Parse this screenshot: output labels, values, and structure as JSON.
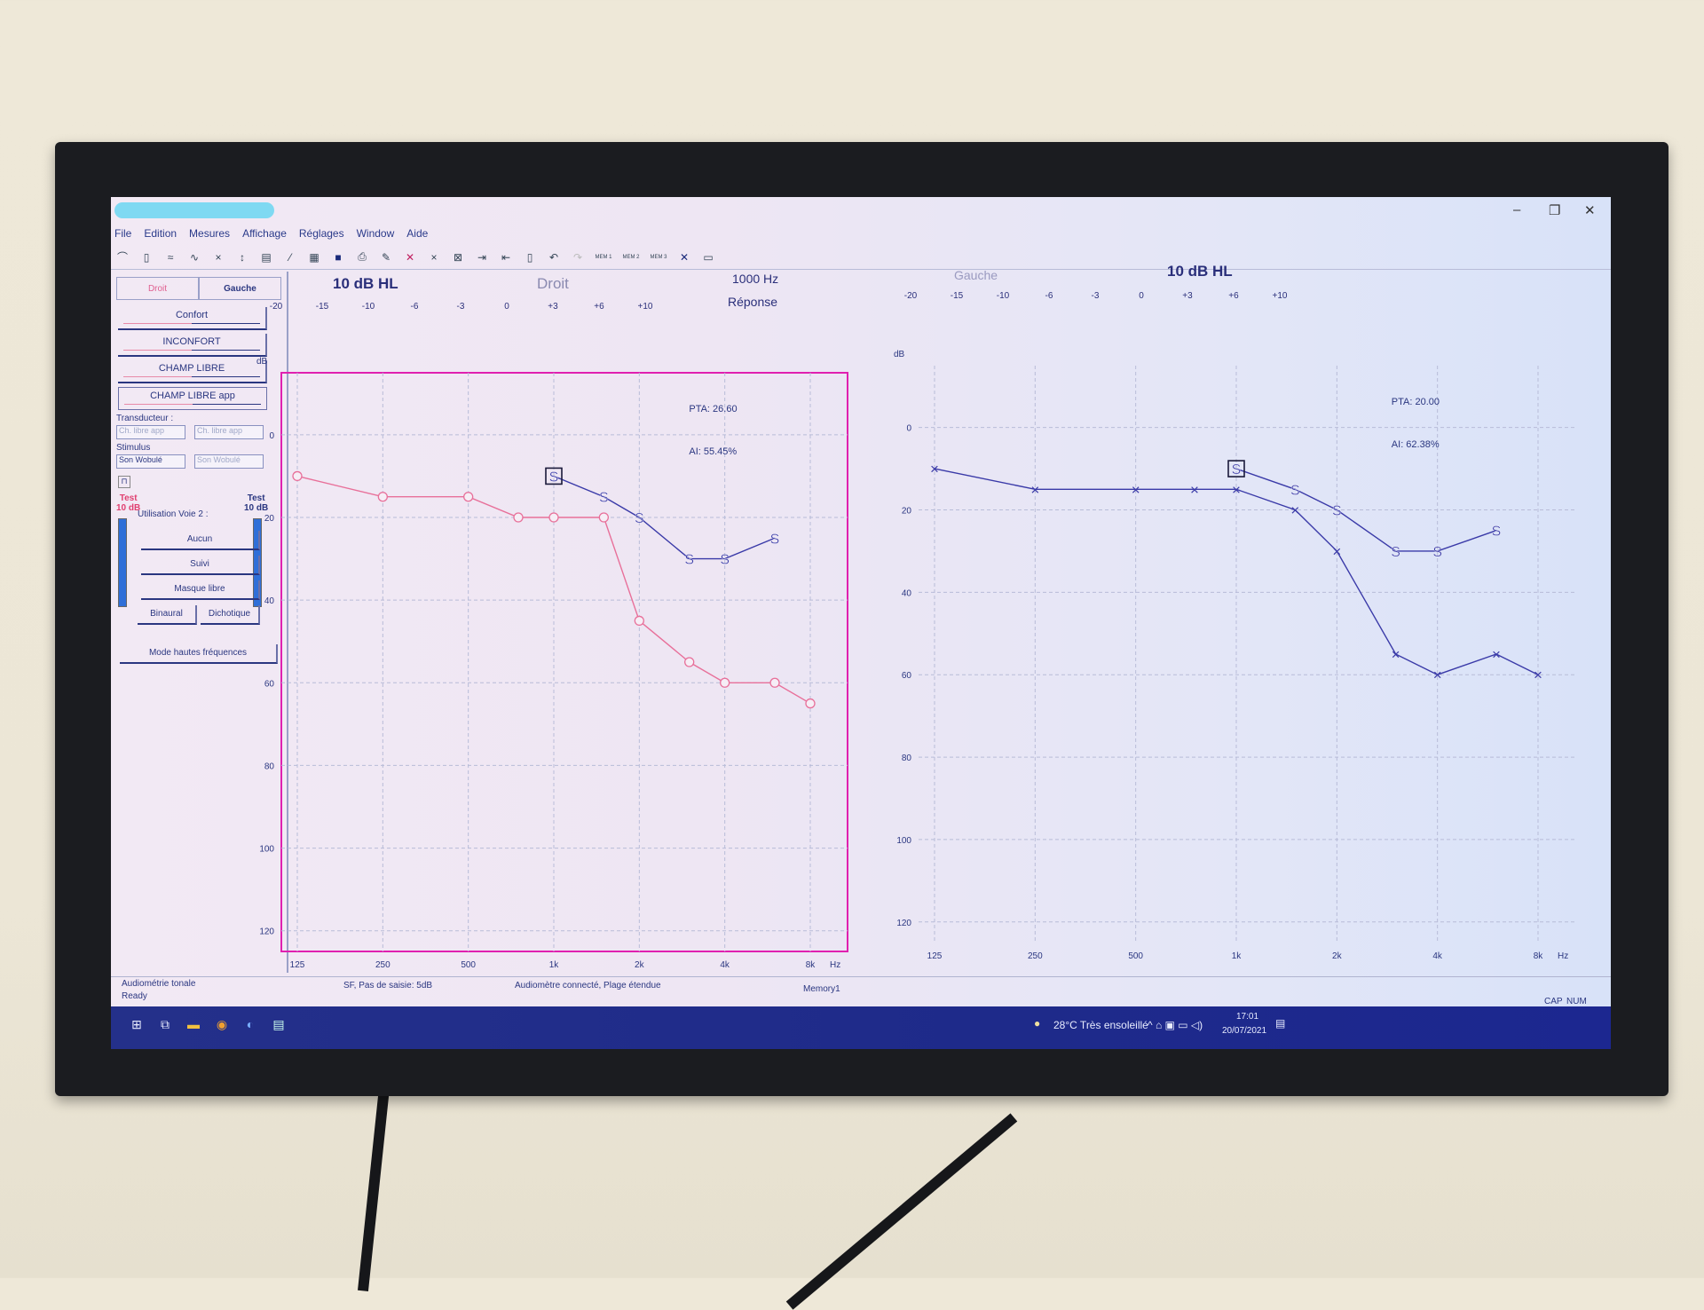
{
  "menu": [
    "File",
    "Edition",
    "Mesures",
    "Affichage",
    "Réglages",
    "Window",
    "Aide"
  ],
  "toolbar": {
    "mem1": "MEM 1",
    "mem2": "MEM 2",
    "mem3": "MEM 3"
  },
  "left_panel": {
    "tabs": [
      "Droit",
      "Gauche"
    ],
    "modes": [
      "Confort",
      "INCONFORT",
      "CHAMP LIBRE",
      "CHAMP LIBRE app"
    ],
    "transducteur_label": "Transducteur :",
    "transducteur": [
      "Ch. libre app",
      "Ch. libre app"
    ],
    "stimulus_label": "Stimulus",
    "stimulus": [
      "Son Wobulé",
      "Son Wobulé"
    ],
    "test_left": "Test",
    "test_left_level": "10 dB",
    "test_right": "Test",
    "test_right_level": "10 dB",
    "voie2_label": "Utilisation Voie 2 :",
    "voie2_buttons": [
      "Aucun",
      "Suivi",
      "Masque libre"
    ],
    "binaural": "Binaural",
    "dichotique": "Dichotique",
    "hf_mode": "Mode hautes fréquences"
  },
  "header": {
    "left_level": "10 dB HL",
    "droit": "Droit",
    "freq": "1000 Hz",
    "reponse": "Réponse",
    "gauche": "Gauche",
    "right_level": "10 dB HL",
    "mask_scale": [
      "-20",
      "-15",
      "-10",
      "-6",
      "-3",
      "0",
      "+3",
      "+6",
      "+10"
    ]
  },
  "colors": {
    "red_series": "#e8709a",
    "blue_series": "#3a3aa8",
    "frame": "#e020b0"
  },
  "chart_data": [
    {
      "type": "line",
      "side": "Droit",
      "ylabel": "dB",
      "y_reversed": true,
      "ylim": [
        -15,
        125
      ],
      "yticks": [
        "0",
        "20",
        "40",
        "60",
        "80",
        "100",
        "120"
      ],
      "xscale": "log",
      "xticks": [
        "125",
        "250",
        "500",
        "1k",
        "2k",
        "4k",
        "8k"
      ],
      "xunit": "Hz",
      "grid": true,
      "pta": "PTA: 26.60",
      "ai": "AI: 55.45%",
      "series": [
        {
          "marker": "circle",
          "color": "#e8709a",
          "x": [
            125,
            250,
            500,
            750,
            1000,
            1500,
            2000,
            3000,
            4000,
            6000,
            8000
          ],
          "y": [
            10,
            15,
            15,
            20,
            20,
            20,
            45,
            55,
            60,
            60,
            65
          ]
        },
        {
          "marker": "S",
          "color": "#3a3aa8",
          "selected_x": 1000,
          "x": [
            1000,
            1500,
            2000,
            3000,
            4000,
            6000
          ],
          "y": [
            10,
            15,
            20,
            30,
            30,
            25
          ]
        }
      ]
    },
    {
      "type": "line",
      "side": "Gauche",
      "ylabel": "dB",
      "y_reversed": true,
      "ylim": [
        -15,
        125
      ],
      "yticks": [
        "0",
        "20",
        "40",
        "60",
        "80",
        "100",
        "120"
      ],
      "xscale": "log",
      "xticks": [
        "125",
        "250",
        "500",
        "1k",
        "2k",
        "4k",
        "8k"
      ],
      "xunit": "Hz",
      "grid": true,
      "pta": "PTA: 20.00",
      "ai": "AI: 62.38%",
      "series": [
        {
          "marker": "X",
          "color": "#3a3aa8",
          "x": [
            125,
            250,
            500,
            750,
            1000,
            1500,
            2000,
            3000,
            4000,
            6000,
            8000
          ],
          "y": [
            10,
            15,
            15,
            15,
            15,
            20,
            30,
            55,
            60,
            55,
            60
          ]
        },
        {
          "marker": "S",
          "color": "#3a3aa8",
          "selected_x": 1000,
          "x": [
            1000,
            1500,
            2000,
            3000,
            4000,
            6000
          ],
          "y": [
            10,
            15,
            20,
            30,
            30,
            25
          ]
        }
      ]
    }
  ],
  "status": {
    "mode": "Audiométrie tonale",
    "ready": "Ready",
    "step": "SF, Pas de saisie: 5dB",
    "device": "Audiomètre connecté, Plage étendue",
    "memory": "Memory1",
    "cap": "CAP",
    "num": "NUM"
  },
  "taskbar": {
    "weather": "28°C  Très ensoleillé",
    "time": "17:01",
    "date": "20/07/2021"
  }
}
